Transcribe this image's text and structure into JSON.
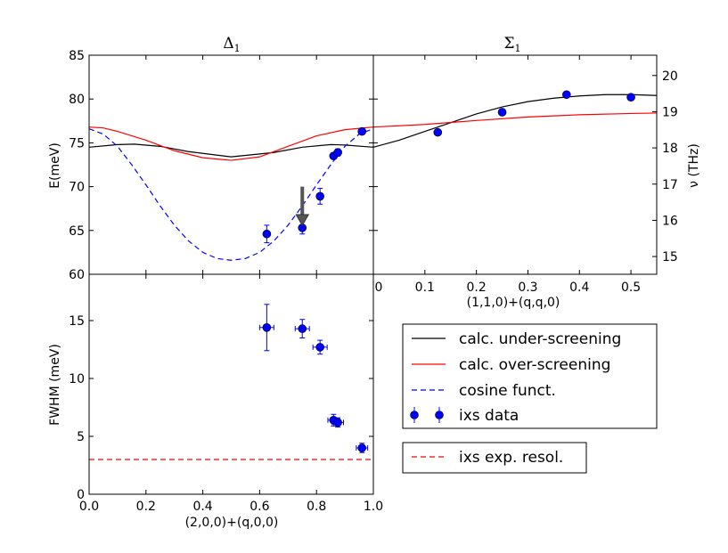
{
  "chart_data": [
    {
      "id": "delta1",
      "type": "line",
      "title": "Δ",
      "title_sub": "1",
      "xlabel": "",
      "ylabel": "E(meV)",
      "xlim": [
        0,
        1
      ],
      "ylim": [
        60,
        85
      ],
      "yticks": [
        "60",
        "65",
        "70",
        "75",
        "80",
        "85"
      ],
      "series": [
        {
          "name": "calc. under-screening",
          "color": "#000000",
          "style": "solid",
          "x": [
            0.0,
            0.1,
            0.16,
            0.25,
            0.35,
            0.5,
            0.65,
            0.75,
            0.85,
            0.9,
            1.0
          ],
          "y": [
            74.5,
            74.8,
            74.85,
            74.6,
            74.0,
            73.4,
            73.9,
            74.5,
            74.8,
            74.75,
            74.5
          ]
        },
        {
          "name": "calc. over-screening",
          "color": "#ff0000",
          "style": "solid",
          "x": [
            0.0,
            0.05,
            0.1,
            0.2,
            0.3,
            0.4,
            0.5,
            0.6,
            0.7,
            0.8,
            0.9,
            1.0
          ],
          "y": [
            76.8,
            76.7,
            76.3,
            75.3,
            74.1,
            73.3,
            73.0,
            73.4,
            74.6,
            75.8,
            76.5,
            76.8
          ]
        },
        {
          "name": "cosine funct.",
          "color": "#0000ff",
          "style": "dashed",
          "x": [
            0.0,
            0.05,
            0.1,
            0.15,
            0.2,
            0.25,
            0.3,
            0.35,
            0.4,
            0.45,
            0.5,
            0.55,
            0.6,
            0.65,
            0.7,
            0.75,
            0.8,
            0.85,
            0.9,
            0.95,
            1.0
          ],
          "y": [
            76.6,
            76.0,
            74.6,
            72.5,
            70.2,
            67.8,
            65.6,
            63.8,
            62.5,
            61.8,
            61.6,
            61.8,
            62.5,
            63.8,
            65.6,
            67.8,
            70.2,
            72.5,
            74.6,
            76.0,
            76.6
          ]
        },
        {
          "name": "ixs data",
          "color": "#0000ff",
          "style": "markers",
          "x": [
            0.625,
            0.75,
            0.8125,
            0.86,
            0.875,
            0.96
          ],
          "y": [
            64.6,
            65.3,
            68.9,
            73.5,
            73.9,
            76.3
          ],
          "yerr": [
            1.0,
            0.7,
            0.9,
            0.3,
            0.4,
            0.3
          ]
        }
      ],
      "annotation": {
        "type": "arrow",
        "x": 0.75,
        "y_from": 70.0,
        "y_to": 66.0,
        "color": "#555555"
      }
    },
    {
      "id": "sigma1",
      "type": "line",
      "title": "Σ",
      "title_sub": "1",
      "xlabel": "(1,1,0)+(q,q,0)",
      "ylabel": "ν (THz)",
      "xlim": [
        0,
        0.55
      ],
      "xticks": [
        "0",
        "0.1",
        "0.2",
        "0.3",
        "0.4",
        "0.5"
      ],
      "ylim_left": [
        60,
        85
      ],
      "ylim_right": [
        14.51,
        20.56
      ],
      "yticks_right": [
        "15",
        "16",
        "17",
        "18",
        "19",
        "20"
      ],
      "series": [
        {
          "name": "calc. under-screening",
          "color": "#000000",
          "style": "solid",
          "x": [
            0.0,
            0.05,
            0.1,
            0.15,
            0.2,
            0.25,
            0.3,
            0.35,
            0.4,
            0.45,
            0.5,
            0.55
          ],
          "y": [
            74.5,
            75.3,
            76.3,
            77.3,
            78.3,
            79.1,
            79.7,
            80.1,
            80.35,
            80.5,
            80.5,
            80.4
          ]
        },
        {
          "name": "calc. over-screening",
          "color": "#ff0000",
          "style": "solid",
          "x": [
            0.0,
            0.1,
            0.2,
            0.3,
            0.4,
            0.5,
            0.55
          ],
          "y": [
            76.8,
            77.1,
            77.55,
            77.95,
            78.2,
            78.35,
            78.4
          ]
        },
        {
          "name": "ixs data",
          "color": "#0000ff",
          "style": "markers",
          "x": [
            0.125,
            0.25,
            0.375,
            0.5
          ],
          "y": [
            76.2,
            78.5,
            80.5,
            80.2
          ],
          "yerr": [
            0.2,
            0.2,
            0.2,
            0.2
          ]
        }
      ]
    },
    {
      "id": "fwhm",
      "type": "scatter",
      "xlabel": "(2,0,0)+(q,0,0)",
      "ylabel": "FWHM (meV)",
      "xlim": [
        0,
        1
      ],
      "xticks": [
        "0.0",
        "0.2",
        "0.4",
        "0.6",
        "0.8",
        "1.0"
      ],
      "ylim": [
        0,
        19
      ],
      "yticks": [
        "0",
        "5",
        "10",
        "15"
      ],
      "series": [
        {
          "name": "ixs data",
          "color": "#0000ff",
          "style": "markers",
          "x": [
            0.625,
            0.75,
            0.8125,
            0.86,
            0.875,
            0.96
          ],
          "y": [
            14.4,
            14.3,
            12.7,
            6.4,
            6.2,
            4.0
          ],
          "xerr": [
            0.025,
            0.025,
            0.025,
            0.02,
            0.02,
            0.02
          ],
          "yerr": [
            2.0,
            0.8,
            0.6,
            0.5,
            0.4,
            0.4
          ]
        },
        {
          "name": "ixs exp. resol.",
          "color": "#ff0000",
          "style": "dashed",
          "x": [
            0.0,
            1.0
          ],
          "y": [
            3.0,
            3.0
          ]
        }
      ]
    }
  ],
  "legend_main": {
    "placement": "lower-right",
    "entries": [
      {
        "label": "calc. under-screening",
        "color": "#000000",
        "style": "solid"
      },
      {
        "label": "calc. over-screening",
        "color": "#ff0000",
        "style": "solid"
      },
      {
        "label": "cosine funct.",
        "color": "#0000ff",
        "style": "dashed"
      },
      {
        "label": "ixs data",
        "color": "#0000ff",
        "style": "markers"
      }
    ]
  },
  "legend_resol": {
    "entries": [
      {
        "label": "ixs exp. resol.",
        "color": "#ff0000",
        "style": "dashed"
      }
    ]
  }
}
